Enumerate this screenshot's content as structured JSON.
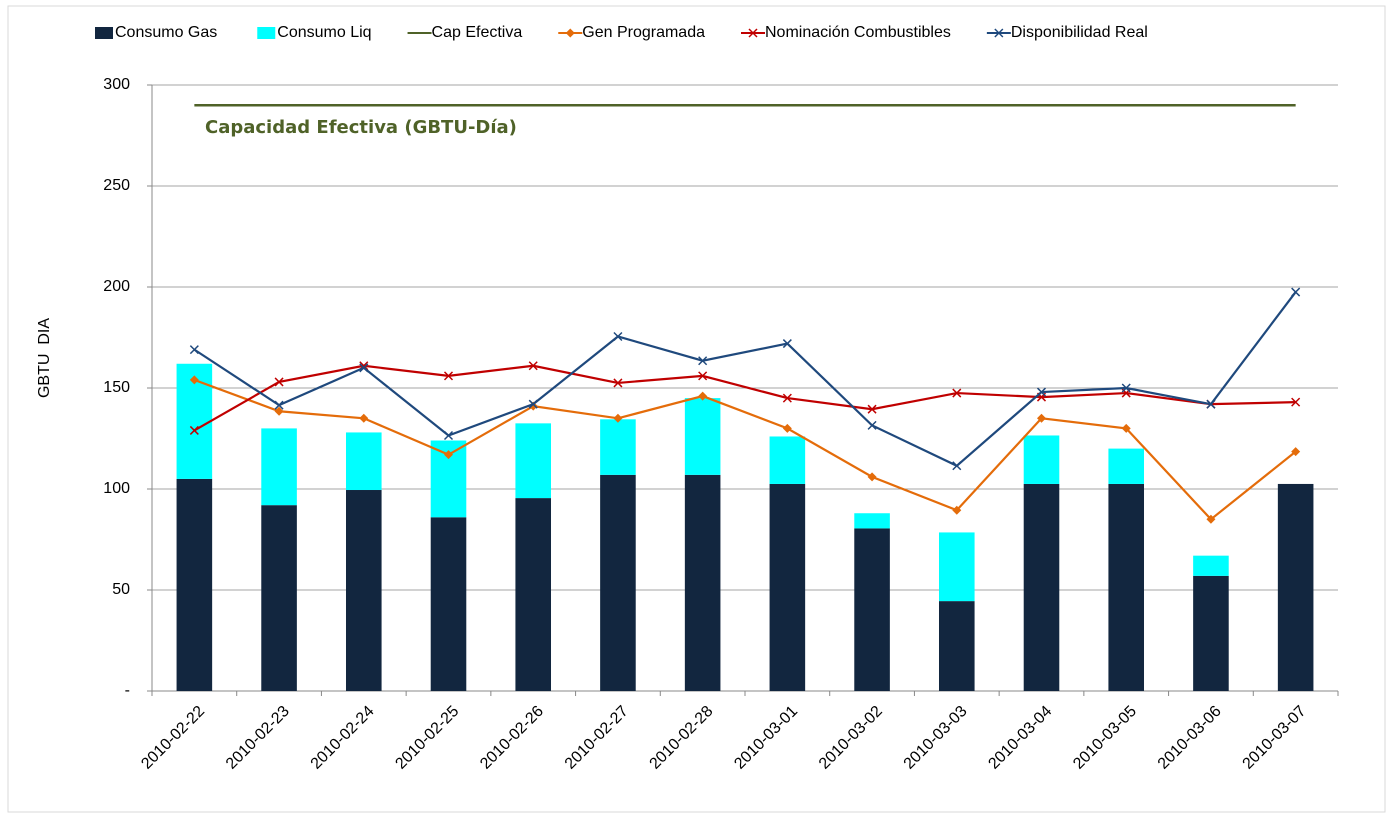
{
  "chart_data": {
    "type": "combo",
    "annotation": "Capacidad Efectiva (GBTU-Día)",
    "y_label": "GBTU  DIA",
    "categories": [
      "2010-02-22",
      "2010-02-23",
      "2010-02-24",
      "2010-02-25",
      "2010-02-26",
      "2010-02-27",
      "2010-02-28",
      "2010-03-01",
      "2010-03-02",
      "2010-03-03",
      "2010-03-04",
      "2010-03-05",
      "2010-03-06",
      "2010-03-07"
    ],
    "ylim": [
      0,
      300
    ],
    "yticks": [
      {
        "value": 0,
        "label": "-"
      },
      50,
      100,
      150,
      200,
      250,
      300
    ],
    "grid": true,
    "legend": "top",
    "series": [
      {
        "name": "Consumo Gas",
        "type": "bar",
        "color": "#12263f",
        "values": [
          105,
          92,
          99.5,
          86,
          95.5,
          107,
          107,
          102.5,
          80.5,
          44.5,
          102.5,
          102.5,
          57,
          102.5
        ]
      },
      {
        "name": "Consumo Liq",
        "type": "bar",
        "color": "#00ffff",
        "values": [
          57,
          38,
          28.5,
          38,
          37,
          27.5,
          38,
          23.5,
          7.5,
          34,
          24,
          17.5,
          10,
          0
        ]
      },
      {
        "name": "Cap Efectiva",
        "type": "line",
        "color": "#4f6228",
        "marker": "none",
        "values": [
          290,
          290,
          290,
          290,
          290,
          290,
          290,
          290,
          290,
          290,
          290,
          290,
          290,
          290
        ]
      },
      {
        "name": "Gen Programada",
        "type": "line",
        "color": "#e46c0a",
        "marker": "diamond",
        "values": [
          154,
          138.5,
          135,
          117,
          141,
          135,
          146,
          130,
          106,
          89.5,
          135,
          130,
          85,
          118.5
        ]
      },
      {
        "name": "Nominación Combustibles",
        "type": "line",
        "color": "#c00000",
        "marker": "x",
        "values": [
          129,
          153,
          161,
          156,
          161,
          152.5,
          156,
          145,
          139.5,
          147.5,
          145.5,
          147.5,
          142,
          143
        ]
      },
      {
        "name": "Disponibilidad Real",
        "type": "line",
        "color": "#1f497d",
        "marker": "x",
        "values": [
          169,
          141.5,
          160,
          126.5,
          142,
          175.5,
          163.5,
          172,
          131.5,
          111.5,
          148,
          150,
          142,
          197.5
        ]
      }
    ]
  }
}
